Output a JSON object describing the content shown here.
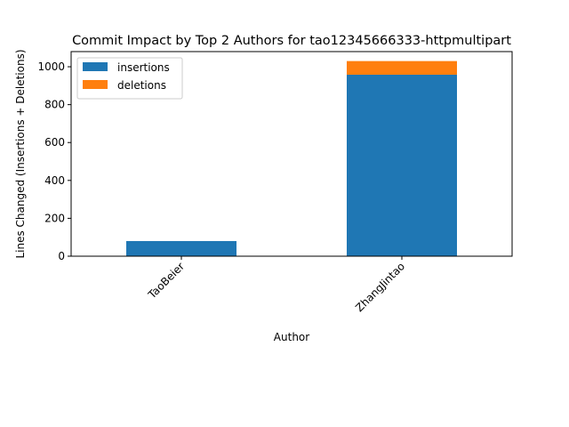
{
  "chart_data": {
    "type": "bar",
    "stacked": true,
    "title": "Commit Impact by Top 2 Authors for tao12345666333-httpmultipart",
    "xlabel": "Author",
    "ylabel": "Lines Changed (Insertions + Deletions)",
    "categories": [
      "TaoBeier",
      "ZhangJintao"
    ],
    "series": [
      {
        "name": "insertions",
        "values": [
          80,
          958
        ],
        "color": "#1f77b4"
      },
      {
        "name": "deletions",
        "values": [
          0,
          72
        ],
        "color": "#ff7f0e"
      }
    ],
    "ylim": [
      0,
      1080
    ],
    "yticks": [
      0,
      200,
      400,
      600,
      800,
      1000
    ],
    "grid": false,
    "legend": "top-left"
  }
}
